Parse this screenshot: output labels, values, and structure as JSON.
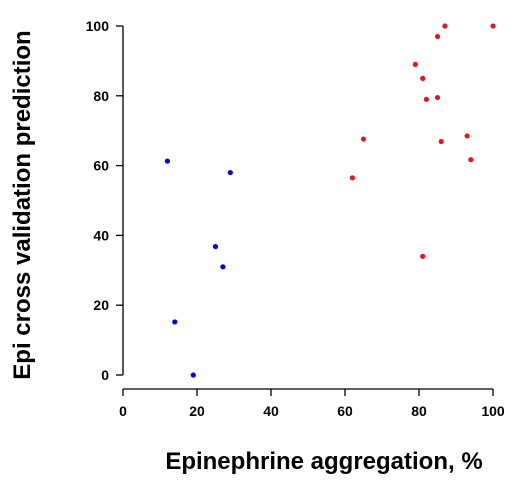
{
  "chart_data": {
    "type": "scatter",
    "title": "",
    "xlabel": "Epinephrine aggregation, %",
    "ylabel": "Epi cross validation prediction",
    "xlim": [
      0,
      100
    ],
    "ylim": [
      0,
      100
    ],
    "xticks": [
      "0",
      "20",
      "40",
      "60",
      "80",
      "100"
    ],
    "yticks": [
      "0",
      "20",
      "40",
      "60",
      "80",
      "100"
    ],
    "grid": false,
    "legend": "none",
    "series": [
      {
        "color": "#0000ee",
        "points": [
          {
            "x": 12,
            "y": 61.3
          },
          {
            "x": 29,
            "y": 58
          },
          {
            "x": 25,
            "y": 36.8
          },
          {
            "x": 27,
            "y": 31
          },
          {
            "x": 14,
            "y": 15.2
          },
          {
            "x": 19,
            "y": 0
          }
        ]
      },
      {
        "color": "#e8141c",
        "points": [
          {
            "x": 87,
            "y": 100
          },
          {
            "x": 100,
            "y": 100
          },
          {
            "x": 85,
            "y": 97
          },
          {
            "x": 79,
            "y": 89
          },
          {
            "x": 81,
            "y": 85
          },
          {
            "x": 82,
            "y": 79
          },
          {
            "x": 85,
            "y": 79.5
          },
          {
            "x": 93,
            "y": 68.5
          },
          {
            "x": 65,
            "y": 67.6
          },
          {
            "x": 86,
            "y": 66.9
          },
          {
            "x": 94,
            "y": 61.7
          },
          {
            "x": 62,
            "y": 56.5
          },
          {
            "x": 81,
            "y": 34
          }
        ]
      }
    ]
  }
}
